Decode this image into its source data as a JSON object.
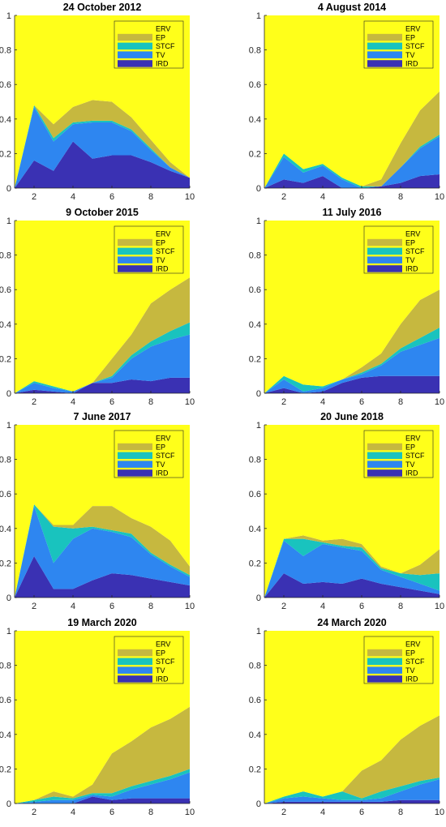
{
  "colors": {
    "ERV": "#ffff1a",
    "EP": "#c6b83f",
    "STCF": "#19c3be",
    "TV": "#2e86f0",
    "IRD": "#3a31b3"
  },
  "chart_data": [
    {
      "type": "area",
      "title": "24 October 2012",
      "x": [
        1,
        2,
        3,
        4,
        5,
        6,
        7,
        8,
        9,
        10
      ],
      "xticks": [
        2,
        4,
        6,
        8,
        10
      ],
      "yticks": [
        0,
        0.2,
        0.4,
        0.6,
        0.8,
        1
      ],
      "ytick_labels": [
        "0",
        "0.2",
        "0.4",
        "0.6",
        "0.8",
        "1"
      ],
      "xlim": [
        1,
        10
      ],
      "ylim": [
        0,
        1
      ],
      "legend": [
        "ERV",
        "EP",
        "STCF",
        "TV",
        "IRD"
      ],
      "legend_position": "top-right",
      "series": [
        {
          "name": "IRD",
          "values": [
            0,
            0.16,
            0.1,
            0.27,
            0.17,
            0.19,
            0.19,
            0.15,
            0.1,
            0.06
          ]
        },
        {
          "name": "TV",
          "values": [
            0,
            0.31,
            0.17,
            0.1,
            0.21,
            0.19,
            0.14,
            0.07,
            0.02,
            0
          ]
        },
        {
          "name": "STCF",
          "values": [
            0,
            0.01,
            0.02,
            0.01,
            0.01,
            0.01,
            0.01,
            0.01,
            0,
            0
          ]
        },
        {
          "name": "EP",
          "values": [
            0,
            0,
            0.08,
            0.09,
            0.12,
            0.11,
            0.07,
            0.05,
            0.03,
            0
          ]
        },
        {
          "name": "ERV",
          "values": [
            1,
            0.52,
            0.63,
            0.53,
            0.49,
            0.5,
            0.59,
            0.72,
            0.85,
            0.94
          ]
        }
      ]
    },
    {
      "type": "area",
      "title": "4 August 2014",
      "x": [
        1,
        2,
        3,
        4,
        5,
        6,
        7,
        8,
        9,
        10
      ],
      "xticks": [
        2,
        4,
        6,
        8,
        10
      ],
      "yticks": [
        0,
        0.2,
        0.4,
        0.6,
        0.8,
        1
      ],
      "ytick_labels": [
        "0",
        "0.2",
        "0.4",
        "0.6",
        "0.8",
        "1"
      ],
      "xlim": [
        1,
        10
      ],
      "ylim": [
        0,
        1
      ],
      "legend": [
        "ERV",
        "EP",
        "STCF",
        "TV",
        "IRD"
      ],
      "legend_position": "top-right",
      "series": [
        {
          "name": "IRD",
          "values": [
            0,
            0.05,
            0.03,
            0.07,
            0,
            0,
            0.01,
            0.03,
            0.07,
            0.08
          ]
        },
        {
          "name": "TV",
          "values": [
            0,
            0.13,
            0.06,
            0.06,
            0.05,
            0,
            0,
            0.09,
            0.16,
            0.22
          ]
        },
        {
          "name": "STCF",
          "values": [
            0,
            0.02,
            0.02,
            0.01,
            0.01,
            0.01,
            0,
            0,
            0.01,
            0.01
          ]
        },
        {
          "name": "EP",
          "values": [
            0,
            0,
            0,
            0,
            0,
            0,
            0.04,
            0.14,
            0.21,
            0.25
          ]
        },
        {
          "name": "ERV",
          "values": [
            1,
            0.8,
            0.89,
            0.86,
            0.94,
            0.99,
            0.95,
            0.74,
            0.55,
            0.44
          ]
        }
      ]
    },
    {
      "type": "area",
      "title": "9 October 2015",
      "x": [
        1,
        2,
        3,
        4,
        5,
        6,
        7,
        8,
        9,
        10
      ],
      "xticks": [
        2,
        4,
        6,
        8,
        10
      ],
      "yticks": [
        0,
        0.2,
        0.4,
        0.6,
        0.8,
        1
      ],
      "ytick_labels": [
        "0",
        "0.2",
        "0.4",
        "0.6",
        "0.8",
        "1"
      ],
      "xlim": [
        1,
        10
      ],
      "ylim": [
        0,
        1
      ],
      "legend": [
        "ERV",
        "EP",
        "STCF",
        "TV",
        "IRD"
      ],
      "legend_position": "top-right",
      "series": [
        {
          "name": "IRD",
          "values": [
            0,
            0.02,
            0.01,
            0,
            0.06,
            0.06,
            0.08,
            0.07,
            0.09,
            0.09
          ]
        },
        {
          "name": "TV",
          "values": [
            0,
            0.04,
            0.02,
            0.01,
            0,
            0.03,
            0.12,
            0.2,
            0.22,
            0.25
          ]
        },
        {
          "name": "STCF",
          "values": [
            0,
            0.01,
            0.01,
            0,
            0,
            0.01,
            0.02,
            0.03,
            0.05,
            0.07
          ]
        },
        {
          "name": "EP",
          "values": [
            0,
            0,
            0,
            0,
            0,
            0.1,
            0.12,
            0.22,
            0.24,
            0.26
          ]
        },
        {
          "name": "ERV",
          "values": [
            1,
            0.93,
            0.96,
            0.99,
            0.94,
            0.8,
            0.66,
            0.48,
            0.4,
            0.33
          ]
        }
      ]
    },
    {
      "type": "area",
      "title": "11 July 2016",
      "x": [
        1,
        2,
        3,
        4,
        5,
        6,
        7,
        8,
        9,
        10
      ],
      "xticks": [
        2,
        4,
        6,
        8,
        10
      ],
      "yticks": [
        0,
        0.2,
        0.4,
        0.6,
        0.8,
        1
      ],
      "ytick_labels": [
        "0",
        "0.2",
        "0.4",
        "0.6",
        "0.8",
        "1"
      ],
      "xlim": [
        1,
        10
      ],
      "ylim": [
        0,
        1
      ],
      "legend": [
        "ERV",
        "EP",
        "STCF",
        "TV",
        "IRD"
      ],
      "legend_position": "top-right",
      "series": [
        {
          "name": "IRD",
          "values": [
            0,
            0.03,
            0,
            0.01,
            0.06,
            0.09,
            0.1,
            0.1,
            0.1,
            0.1
          ]
        },
        {
          "name": "TV",
          "values": [
            0,
            0.05,
            0.01,
            0.02,
            0.02,
            0.02,
            0.06,
            0.14,
            0.18,
            0.22
          ]
        },
        {
          "name": "STCF",
          "values": [
            0,
            0.02,
            0.04,
            0.01,
            0,
            0.01,
            0.01,
            0.02,
            0.04,
            0.06
          ]
        },
        {
          "name": "EP",
          "values": [
            0,
            0,
            0,
            0,
            0,
            0.03,
            0.06,
            0.14,
            0.22,
            0.22
          ]
        },
        {
          "name": "ERV",
          "values": [
            1,
            0.9,
            0.95,
            0.96,
            0.92,
            0.85,
            0.77,
            0.6,
            0.46,
            0.4
          ]
        }
      ]
    },
    {
      "type": "area",
      "title": "7 June 2017",
      "x": [
        1,
        2,
        3,
        4,
        5,
        6,
        7,
        8,
        9,
        10
      ],
      "xticks": [
        2,
        4,
        6,
        8,
        10
      ],
      "yticks": [
        0,
        0.2,
        0.4,
        0.6,
        0.8,
        1
      ],
      "ytick_labels": [
        "0",
        "0.2",
        "0.4",
        "0.6",
        "0.8",
        "1"
      ],
      "xlim": [
        1,
        10
      ],
      "ylim": [
        0,
        1
      ],
      "legend": [
        "ERV",
        "EP",
        "STCF",
        "TV",
        "IRD"
      ],
      "legend_position": "top-right",
      "series": [
        {
          "name": "IRD",
          "values": [
            0,
            0.24,
            0.05,
            0.05,
            0.1,
            0.14,
            0.13,
            0.11,
            0.09,
            0.07
          ]
        },
        {
          "name": "TV",
          "values": [
            0,
            0.29,
            0.15,
            0.29,
            0.3,
            0.24,
            0.22,
            0.14,
            0.09,
            0.05
          ]
        },
        {
          "name": "STCF",
          "values": [
            0,
            0.01,
            0.21,
            0.06,
            0.01,
            0.01,
            0.02,
            0.01,
            0.01,
            0.01
          ]
        },
        {
          "name": "EP",
          "values": [
            0,
            0,
            0.01,
            0.02,
            0.12,
            0.14,
            0.09,
            0.15,
            0.14,
            0.05
          ]
        },
        {
          "name": "ERV",
          "values": [
            1,
            0.46,
            0.58,
            0.58,
            0.47,
            0.47,
            0.54,
            0.59,
            0.67,
            0.82
          ]
        }
      ]
    },
    {
      "type": "area",
      "title": "20 June 2018",
      "x": [
        1,
        2,
        3,
        4,
        5,
        6,
        7,
        8,
        9,
        10
      ],
      "xticks": [
        2,
        4,
        6,
        8,
        10
      ],
      "yticks": [
        0,
        0.2,
        0.4,
        0.6,
        0.8,
        1
      ],
      "ytick_labels": [
        "0",
        "0.2",
        "0.4",
        "0.6",
        "0.8",
        "1"
      ],
      "xlim": [
        1,
        10
      ],
      "ylim": [
        0,
        1
      ],
      "legend": [
        "ERV",
        "EP",
        "STCF",
        "TV",
        "IRD"
      ],
      "legend_position": "top-right",
      "series": [
        {
          "name": "IRD",
          "values": [
            0,
            0.14,
            0.08,
            0.09,
            0.08,
            0.11,
            0.08,
            0.06,
            0.04,
            0.02
          ]
        },
        {
          "name": "TV",
          "values": [
            0,
            0.19,
            0.16,
            0.22,
            0.21,
            0.16,
            0.08,
            0.06,
            0.04,
            0.02
          ]
        },
        {
          "name": "STCF",
          "values": [
            0,
            0.01,
            0.1,
            0.01,
            0.01,
            0.02,
            0.01,
            0.02,
            0.05,
            0.1
          ]
        },
        {
          "name": "EP",
          "values": [
            0,
            0,
            0.02,
            0.01,
            0.04,
            0.02,
            0.01,
            0,
            0.06,
            0.14
          ]
        },
        {
          "name": "ERV",
          "values": [
            1,
            0.66,
            0.64,
            0.67,
            0.66,
            0.69,
            0.82,
            0.86,
            0.81,
            0.72
          ]
        }
      ]
    },
    {
      "type": "area",
      "title": "19 March 2020",
      "x": [
        1,
        2,
        3,
        4,
        5,
        6,
        7,
        8,
        9,
        10
      ],
      "xticks": [
        2,
        4,
        6,
        8,
        10
      ],
      "yticks": [
        0,
        0.2,
        0.4,
        0.6,
        0.8,
        1
      ],
      "ytick_labels": [
        "0",
        "0.2",
        "0.4",
        "0.6",
        "0.8",
        "1"
      ],
      "xlim": [
        1,
        10
      ],
      "ylim": [
        0,
        1
      ],
      "legend": [
        "ERV",
        "EP",
        "STCF",
        "TV",
        "IRD"
      ],
      "legend_position": "top-right",
      "series": [
        {
          "name": "IRD",
          "values": [
            0,
            0,
            0,
            0,
            0.04,
            0.02,
            0.03,
            0.03,
            0.03,
            0.03
          ]
        },
        {
          "name": "TV",
          "values": [
            0,
            0.01,
            0.02,
            0.02,
            0.01,
            0.02,
            0.05,
            0.08,
            0.11,
            0.15
          ]
        },
        {
          "name": "STCF",
          "values": [
            0,
            0.01,
            0.02,
            0.01,
            0.01,
            0.02,
            0.02,
            0.02,
            0.02,
            0.02
          ]
        },
        {
          "name": "EP",
          "values": [
            0,
            0,
            0.03,
            0.01,
            0.05,
            0.23,
            0.26,
            0.31,
            0.33,
            0.36
          ]
        },
        {
          "name": "ERV",
          "values": [
            1,
            0.98,
            0.93,
            0.96,
            0.89,
            0.71,
            0.64,
            0.56,
            0.51,
            0.44
          ]
        }
      ]
    },
    {
      "type": "area",
      "title": "24 March 2020",
      "x": [
        1,
        2,
        3,
        4,
        5,
        6,
        7,
        8,
        9,
        10
      ],
      "xticks": [
        2,
        4,
        6,
        8,
        10
      ],
      "yticks": [
        0,
        0.2,
        0.4,
        0.6,
        0.8,
        1
      ],
      "ytick_labels": [
        "0",
        "0.2",
        "0.4",
        "0.6",
        "0.8",
        "1"
      ],
      "xlim": [
        1,
        10
      ],
      "ylim": [
        0,
        1
      ],
      "legend": [
        "ERV",
        "EP",
        "STCF",
        "TV",
        "IRD"
      ],
      "legend_position": "top-right",
      "series": [
        {
          "name": "IRD",
          "values": [
            0,
            0.01,
            0.01,
            0.01,
            0.01,
            0.01,
            0.01,
            0.02,
            0.02,
            0.02
          ]
        },
        {
          "name": "TV",
          "values": [
            0,
            0.02,
            0.03,
            0.02,
            0.01,
            0.01,
            0.02,
            0.05,
            0.09,
            0.12
          ]
        },
        {
          "name": "STCF",
          "values": [
            0,
            0.01,
            0.03,
            0.01,
            0.05,
            0.01,
            0.04,
            0.03,
            0.02,
            0.01
          ]
        },
        {
          "name": "EP",
          "values": [
            0,
            0,
            0,
            0,
            0,
            0.16,
            0.18,
            0.27,
            0.32,
            0.36
          ]
        },
        {
          "name": "ERV",
          "values": [
            1,
            0.96,
            0.93,
            0.96,
            0.93,
            0.81,
            0.75,
            0.63,
            0.55,
            0.49
          ]
        }
      ]
    }
  ]
}
